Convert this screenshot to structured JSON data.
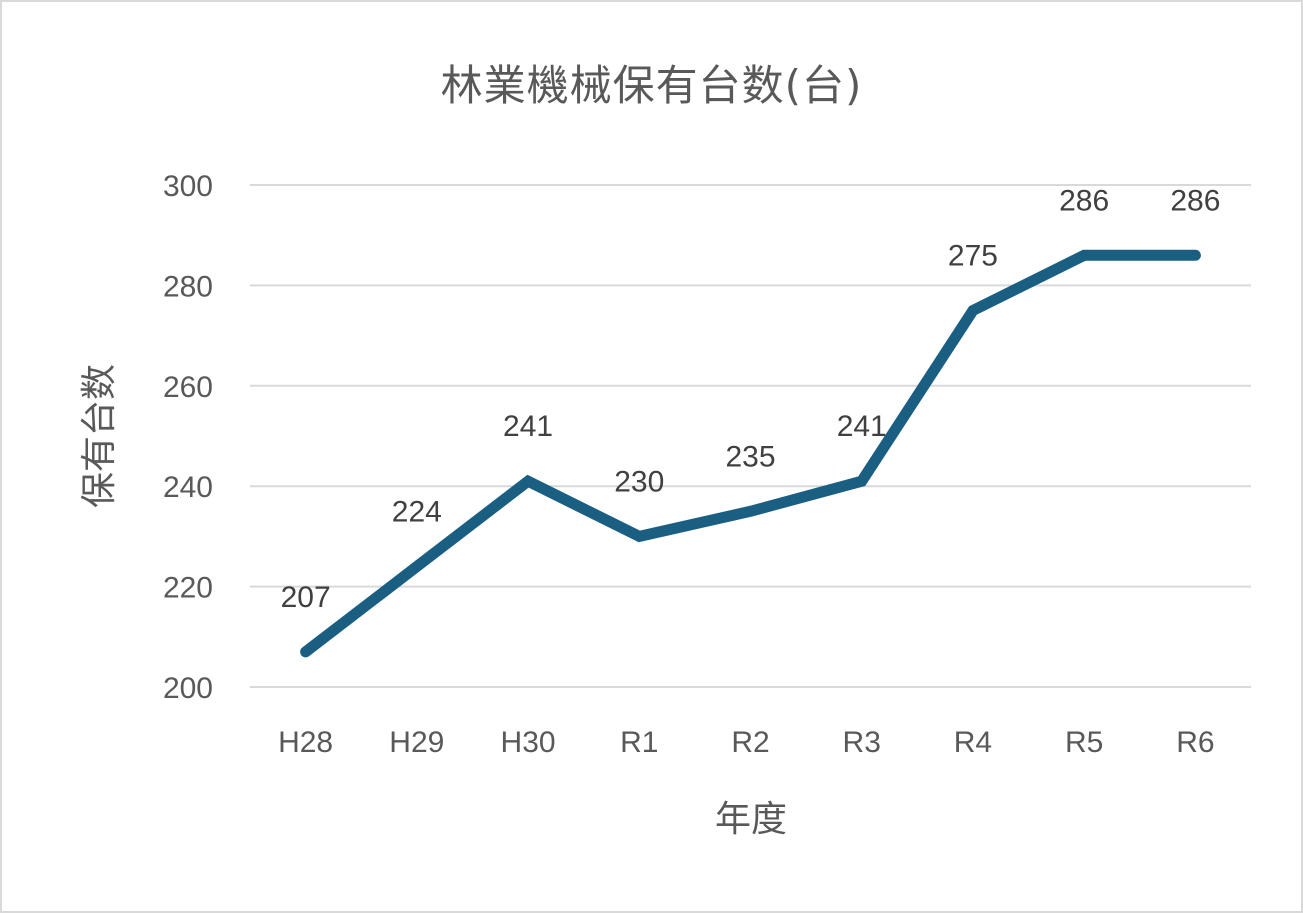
{
  "chart_data": {
    "type": "line",
    "title": "林業機械保有台数(台)",
    "xlabel": "年度",
    "ylabel": "保有台数",
    "categories": [
      "H28",
      "H29",
      "H30",
      "R1",
      "R2",
      "R3",
      "R4",
      "R5",
      "R6"
    ],
    "series": [
      {
        "name": "保有台数",
        "values": [
          207,
          224,
          241,
          230,
          235,
          241,
          275,
          286,
          286
        ],
        "color": "#1a5f82"
      }
    ],
    "ylim": [
      200,
      300
    ],
    "yticks": [
      200,
      220,
      240,
      260,
      280,
      300
    ],
    "grid": true,
    "legend": "none",
    "data_labels": true
  },
  "colors": {
    "line": "#1a5f82",
    "grid": "#d9d9d9",
    "axis_text": "#595959",
    "label_text": "#404040",
    "border": "#d9d9d9"
  }
}
